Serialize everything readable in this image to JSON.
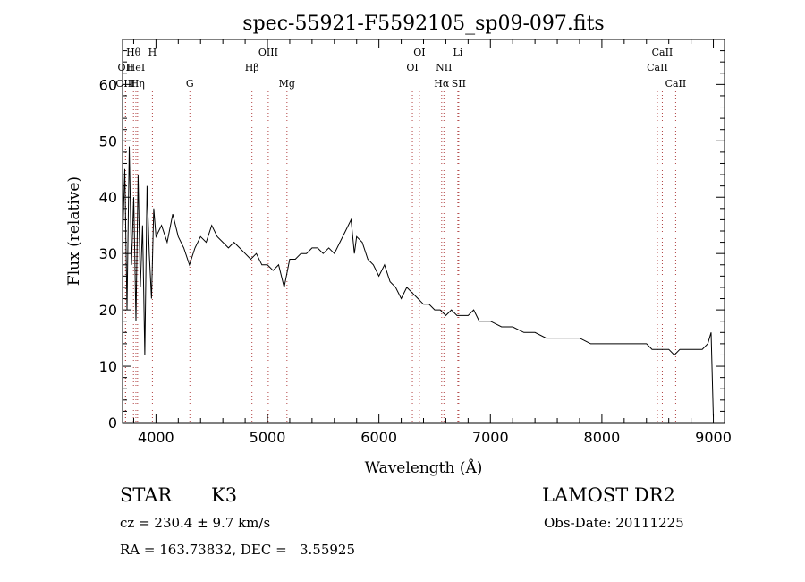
{
  "chart_data": {
    "type": "line",
    "title": "spec-55921-F5592105_sp09-097.fits",
    "xlabel": "Wavelength (Å)",
    "ylabel": "Flux (relative)",
    "xlim": [
      3700,
      9100
    ],
    "ylim": [
      0,
      68
    ],
    "xticks": [
      4000,
      5000,
      6000,
      7000,
      8000,
      9000
    ],
    "yticks": [
      0,
      10,
      20,
      30,
      40,
      50,
      60
    ],
    "grid": false,
    "series": [
      {
        "x": [
          3700,
          3720,
          3740,
          3760,
          3780,
          3800,
          3820,
          3840,
          3860,
          3880,
          3900,
          3920,
          3940,
          3960,
          3980,
          4000,
          4050,
          4100,
          4150,
          4200,
          4250,
          4300,
          4350,
          4400,
          4450,
          4500,
          4550,
          4600,
          4650,
          4700,
          4750,
          4800,
          4850,
          4900,
          4950,
          5000,
          5050,
          5100,
          5150,
          5200,
          5250,
          5300,
          5350,
          5400,
          5450,
          5500,
          5550,
          5600,
          5650,
          5700,
          5750,
          5780,
          5800,
          5850,
          5900,
          5950,
          6000,
          6050,
          6100,
          6150,
          6200,
          6250,
          6300,
          6350,
          6400,
          6450,
          6500,
          6550,
          6600,
          6650,
          6700,
          6750,
          6800,
          6850,
          6900,
          6950,
          7000,
          7100,
          7200,
          7300,
          7400,
          7500,
          7600,
          7700,
          7800,
          7900,
          8000,
          8100,
          8200,
          8300,
          8400,
          8450,
          8500,
          8550,
          8600,
          8650,
          8700,
          8750,
          8800,
          8850,
          8900,
          8950,
          8980,
          9000
        ],
        "y": [
          32,
          45,
          20,
          49,
          28,
          40,
          18,
          44,
          24,
          35,
          12,
          42,
          30,
          22,
          38,
          33,
          35,
          32,
          37,
          33,
          31,
          28,
          31,
          33,
          32,
          35,
          33,
          32,
          31,
          32,
          31,
          30,
          29,
          30,
          28,
          28,
          27,
          28,
          24,
          29,
          29,
          30,
          30,
          31,
          31,
          30,
          31,
          30,
          32,
          34,
          36,
          30,
          33,
          32,
          29,
          28,
          26,
          28,
          25,
          24,
          22,
          24,
          23,
          22,
          21,
          21,
          20,
          20,
          19,
          20,
          19,
          19,
          19,
          20,
          18,
          18,
          18,
          17,
          17,
          16,
          16,
          15,
          15,
          15,
          15,
          14,
          14,
          14,
          14,
          14,
          14,
          13,
          13,
          13,
          13,
          12,
          13,
          13,
          13,
          13,
          13,
          14,
          16,
          1
        ]
      }
    ],
    "annotations": [
      {
        "label": "Hθ",
        "x": 3798,
        "row": 1
      },
      {
        "label": "OII",
        "x": 3727,
        "row": 2
      },
      {
        "label": "HeI",
        "x": 3820,
        "row": 2
      },
      {
        "label": "OIII",
        "x": 3727,
        "row": 3
      },
      {
        "label": "Hη",
        "x": 3835,
        "row": 3
      },
      {
        "label": "H",
        "x": 3968,
        "row": 1
      },
      {
        "label": "G",
        "x": 4304,
        "row": 3
      },
      {
        "label": "OIII",
        "x": 5007,
        "row": 1
      },
      {
        "label": "Hβ",
        "x": 4861,
        "row": 2
      },
      {
        "label": "Mg",
        "x": 5175,
        "row": 3
      },
      {
        "label": "OI",
        "x": 6363,
        "row": 1
      },
      {
        "label": "OI",
        "x": 6300,
        "row": 2
      },
      {
        "label": "Li",
        "x": 6708,
        "row": 1
      },
      {
        "label": "NII",
        "x": 6583,
        "row": 2
      },
      {
        "label": "Hα",
        "x": 6563,
        "row": 3
      },
      {
        "label": "SII",
        "x": 6716,
        "row": 3
      },
      {
        "label": "CaII",
        "x": 8542,
        "row": 1
      },
      {
        "label": "CaII",
        "x": 8498,
        "row": 2
      },
      {
        "label": "CaII",
        "x": 8662,
        "row": 3
      }
    ]
  },
  "info": {
    "object_class": "STAR",
    "subclass": "K3",
    "survey": "LAMOST DR2",
    "redshift": "cz = 230.4 ± 9.7 km/s",
    "obs_date": "Obs-Date: 20111225",
    "coords": "RA = 163.73832, DEC =   3.55925"
  },
  "colors": {
    "spectrum": "#000000",
    "line_marker": "#b04040",
    "axis": "#000000"
  }
}
